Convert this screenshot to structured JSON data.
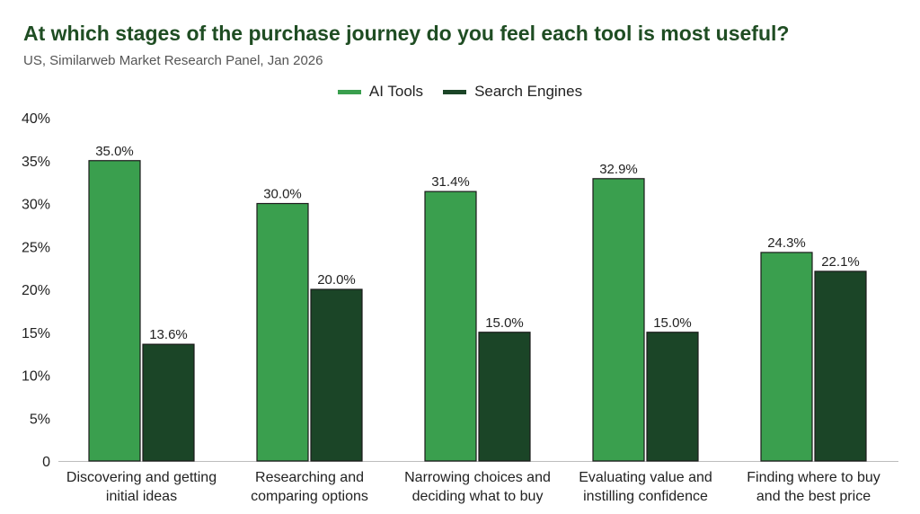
{
  "header": {
    "title": "At which stages of the purchase journey do you feel each tool is most useful?",
    "subtitle": "US, Similarweb Market Research Panel, Jan 2026"
  },
  "colors": {
    "ai_tools": "#3a9f4e",
    "search_engines": "#1b4527",
    "title": "#1f4d23"
  },
  "chart_data": {
    "type": "bar",
    "categories": [
      [
        "Discovering and getting",
        "initial ideas"
      ],
      [
        "Researching and",
        "comparing options"
      ],
      [
        "Narrowing choices and",
        "deciding what to buy"
      ],
      [
        "Evaluating value and",
        "instilling confidence"
      ],
      [
        "Finding where to buy",
        "and the best price"
      ]
    ],
    "series": [
      {
        "name": "AI Tools",
        "values": [
          35.0,
          30.0,
          31.4,
          32.9,
          24.3
        ],
        "labels": [
          "35.0%",
          "30.0%",
          "31.4%",
          "32.9%",
          "24.3%"
        ]
      },
      {
        "name": "Search Engines",
        "values": [
          13.6,
          20.0,
          15.0,
          15.0,
          22.1
        ],
        "labels": [
          "13.6%",
          "20.0%",
          "15.0%",
          "15.0%",
          "22.1%"
        ]
      }
    ],
    "ylim": [
      0,
      40
    ],
    "yticks": [
      "0",
      "5%",
      "10%",
      "15%",
      "20%",
      "25%",
      "30%",
      "35%",
      "40%"
    ],
    "grid": false,
    "legend": "top-center"
  }
}
